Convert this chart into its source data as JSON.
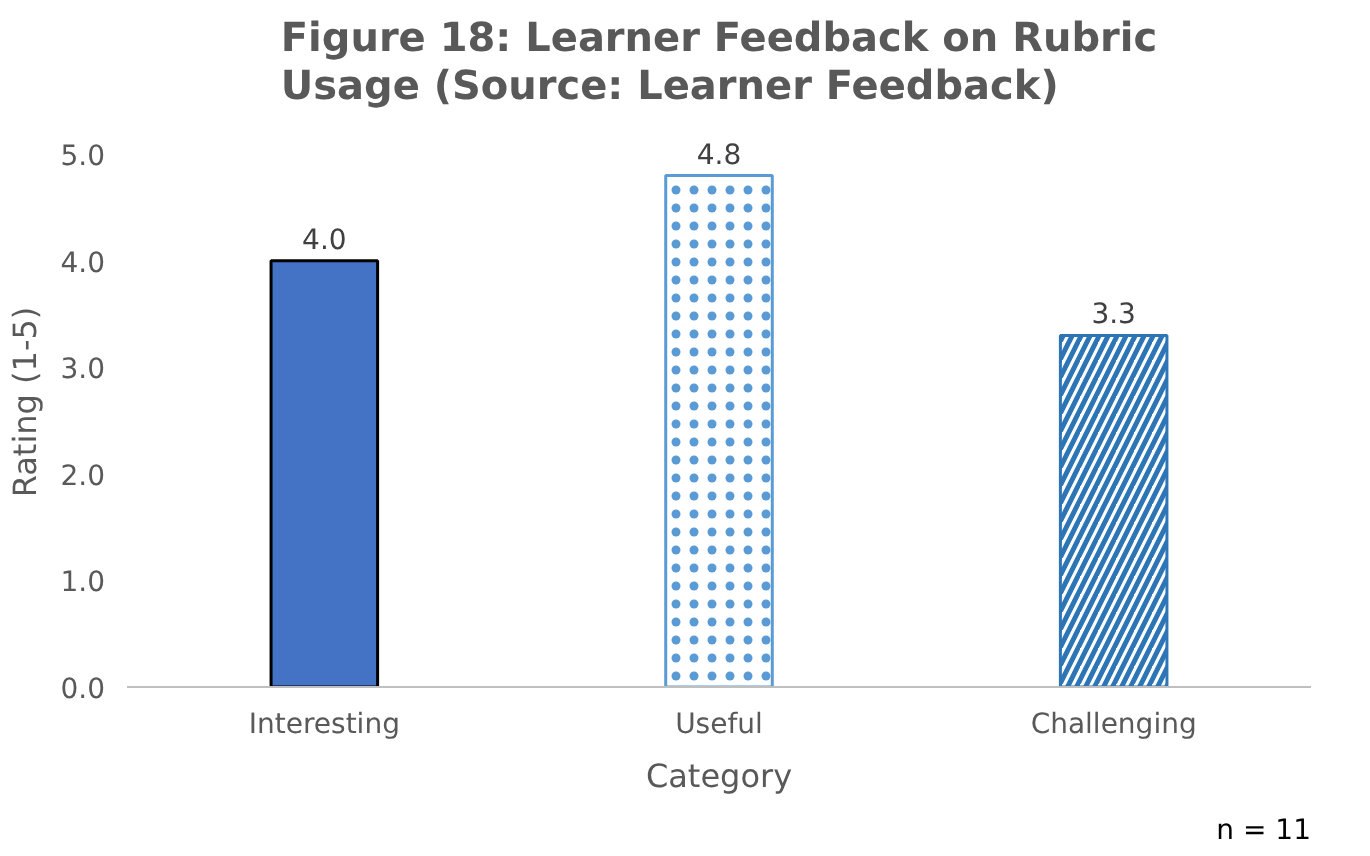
{
  "chart_data": {
    "type": "bar",
    "title": "Figure 18: Learner Feedback on Rubric Usage (Source: Learner Feedback)",
    "xlabel": "Category",
    "ylabel": "Rating (1-5)",
    "categories": [
      "Interesting",
      "Useful",
      "Challenging"
    ],
    "values": [
      4.0,
      4.8,
      3.3
    ],
    "colors": [
      "#4472c4",
      "#5b9bd5",
      "#2e75b6"
    ],
    "value_labels": [
      "4.0",
      "4.8",
      "3.3"
    ],
    "ylim": [
      0,
      5
    ],
    "yticks": [
      {
        "value": 0,
        "label": "0.0"
      },
      {
        "value": 1,
        "label": "1.0"
      },
      {
        "value": 2,
        "label": "2.0"
      },
      {
        "value": 3,
        "label": "3.0"
      },
      {
        "value": 4,
        "label": "4.0"
      },
      {
        "value": 5,
        "label": "5.0"
      }
    ],
    "annotations": [
      "n = 11"
    ]
  }
}
